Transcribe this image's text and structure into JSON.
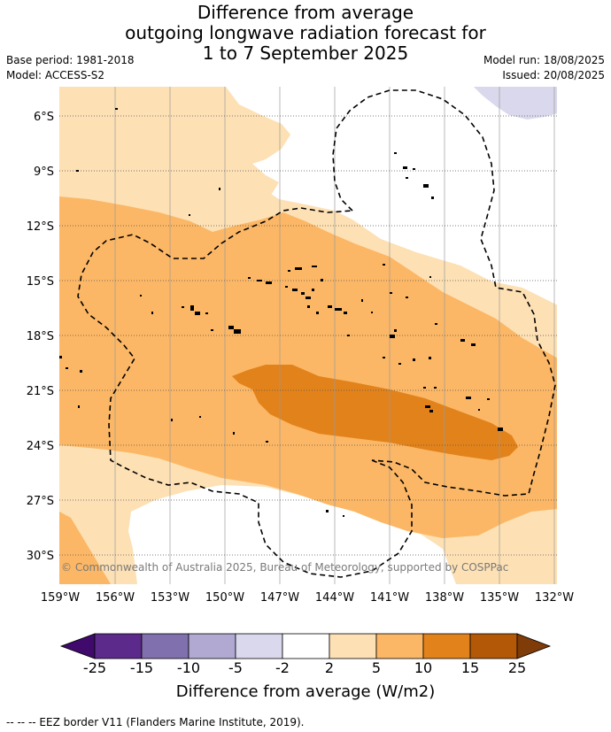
{
  "title": {
    "line1": "Difference from average",
    "line2": "outgoing longwave radiation forecast for",
    "line3": "1 to 7 September 2025"
  },
  "meta": {
    "base_period": "Base period: 1981-2018",
    "model": "Model: ACCESS-S2",
    "model_run": "Model run: 18/08/2025",
    "issued": "Issued: 20/08/2025"
  },
  "map": {
    "lat_ticks": [
      "6°S",
      "9°S",
      "12°S",
      "15°S",
      "18°S",
      "21°S",
      "24°S",
      "27°S",
      "30°S"
    ],
    "lon_ticks": [
      "159°W",
      "156°W",
      "153°W",
      "150°W",
      "147°W",
      "144°W",
      "141°W",
      "138°W",
      "135°W",
      "132°W"
    ],
    "copyright": "© Commonwealth of Australia 2025, Bureau of Meteorology, supported by COSPPac"
  },
  "colorbar": {
    "title": "Difference from average (W/m2)",
    "labels": [
      "-25",
      "-15",
      "-10",
      "-5",
      "-2",
      "2",
      "5",
      "10",
      "15",
      "25"
    ],
    "colors": [
      "#3f0a6b",
      "#5c2a8a",
      "#8070ad",
      "#b1a9d2",
      "#d9d8ec",
      "#ffffff",
      "#fde0b4",
      "#fbb765",
      "#e2821b",
      "#b35806",
      "#7f3b08"
    ]
  },
  "footnote": "--  --  -- EEZ border V11 (Flanders Marine Institute, 2019)."
}
